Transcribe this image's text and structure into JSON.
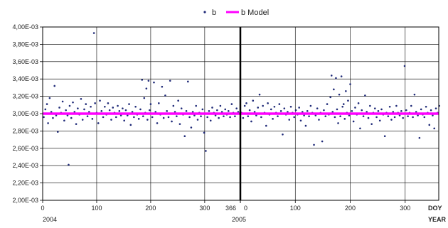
{
  "chart_data": {
    "type": "scatter",
    "legend": {
      "placement": "top",
      "entries": [
        "b",
        "b Model"
      ]
    },
    "colors": {
      "points": "#1f2a78",
      "model": "#ff00ff",
      "grid": "#000000",
      "divider": "#000000"
    },
    "grid": true,
    "ylim": [
      0.002,
      0.004
    ],
    "y_ticks": [
      "4,00E-03",
      "3,80E-03",
      "3,60E-03",
      "3,40E-03",
      "3,20E-03",
      "3,00E-03",
      "2,80E-03",
      "2,60E-03",
      "2,40E-03",
      "2,20E-03",
      "2,00E-03"
    ],
    "panels": [
      {
        "year": "2004",
        "xlim": [
          0,
          366
        ],
        "x_ticks": [
          "0",
          "100",
          "200",
          "300",
          "366"
        ]
      },
      {
        "year": "2005",
        "xlim": [
          0,
          365
        ],
        "x_ticks": [
          "0",
          "100",
          "200",
          "300"
        ]
      }
    ],
    "x_axis_titles": [
      "DOY",
      "YEAR"
    ],
    "model_value": 0.003,
    "series": [
      {
        "name": "b",
        "points_2004": [
          [
            2,
            0.00296
          ],
          [
            5,
            0.00305
          ],
          [
            8,
            0.00311
          ],
          [
            10,
            0.00289
          ],
          [
            13,
            0.00318
          ],
          [
            16,
            0.00302
          ],
          [
            19,
            0.00295
          ],
          [
            22,
            0.00332
          ],
          [
            25,
            0.00298
          ],
          [
            28,
            0.00279
          ],
          [
            31,
            0.00307
          ],
          [
            34,
            0.00301
          ],
          [
            37,
            0.00314
          ],
          [
            40,
            0.00292
          ],
          [
            43,
            0.00304
          ],
          [
            46,
            0.00298
          ],
          [
            48,
            0.00241
          ],
          [
            50,
            0.00309
          ],
          [
            53,
            0.00295
          ],
          [
            56,
            0.00313
          ],
          [
            59,
            0.00302
          ],
          [
            62,
            0.00288
          ],
          [
            65,
            0.00306
          ],
          [
            68,
            0.00299
          ],
          [
            71,
            0.00317
          ],
          [
            74,
            0.00293
          ],
          [
            77,
            0.00305
          ],
          [
            80,
            0.00311
          ],
          [
            83,
            0.00297
          ],
          [
            86,
            0.00302
          ],
          [
            89,
            0.00308
          ],
          [
            92,
            0.00294
          ],
          [
            95,
            0.00393
          ],
          [
            97,
            0.00312
          ],
          [
            100,
            0.00301
          ],
          [
            103,
            0.00289
          ],
          [
            106,
            0.00315
          ],
          [
            109,
            0.00303
          ],
          [
            112,
            0.00296
          ],
          [
            115,
            0.00308
          ],
          [
            118,
            0.00299
          ],
          [
            121,
            0.00312
          ],
          [
            124,
            0.00304
          ],
          [
            127,
            0.00293
          ],
          [
            130,
            0.00307
          ],
          [
            133,
            0.00301
          ],
          [
            136,
            0.00296
          ],
          [
            139,
            0.00309
          ],
          [
            142,
            0.00303
          ],
          [
            145,
            0.00298
          ],
          [
            148,
            0.00306
          ],
          [
            151,
            0.00292
          ],
          [
            154,
            0.00304
          ],
          [
            157,
            0.00298
          ],
          [
            160,
            0.00311
          ],
          [
            163,
            0.00287
          ],
          [
            166,
            0.00302
          ],
          [
            169,
            0.00296
          ],
          [
            172,
            0.00308
          ],
          [
            175,
            0.00299
          ],
          [
            178,
            0.00294
          ],
          [
            181,
            0.00305
          ],
          [
            184,
            0.00339
          ],
          [
            186,
            0.00297
          ],
          [
            188,
            0.00318
          ],
          [
            190,
            0.00301
          ],
          [
            192,
            0.00329
          ],
          [
            194,
            0.00293
          ],
          [
            196,
            0.00338
          ],
          [
            198,
            0.00304
          ],
          [
            200,
            0.00311
          ],
          [
            203,
            0.00296
          ],
          [
            206,
            0.00336
          ],
          [
            209,
            0.00302
          ],
          [
            212,
            0.00289
          ],
          [
            215,
            0.00312
          ],
          [
            218,
            0.00299
          ],
          [
            221,
            0.00331
          ],
          [
            224,
            0.00295
          ],
          [
            227,
            0.00321
          ],
          [
            230,
            0.00303
          ],
          [
            233,
            0.00296
          ],
          [
            236,
            0.00338
          ],
          [
            239,
            0.00291
          ],
          [
            242,
            0.00309
          ],
          [
            245,
            0.00302
          ],
          [
            248,
            0.00297
          ],
          [
            251,
            0.00315
          ],
          [
            254,
            0.00288
          ],
          [
            257,
            0.00306
          ],
          [
            260,
            0.00299
          ],
          [
            263,
            0.00274
          ],
          [
            266,
            0.00303
          ],
          [
            269,
            0.00337
          ],
          [
            272,
            0.00296
          ],
          [
            275,
            0.00284
          ],
          [
            278,
            0.00302
          ],
          [
            281,
            0.00298
          ],
          [
            284,
            0.00309
          ],
          [
            287,
            0.00293
          ],
          [
            290,
            0.00301
          ],
          [
            293,
            0.00297
          ],
          [
            296,
            0.00305
          ],
          [
            299,
            0.00278
          ],
          [
            302,
            0.00257
          ],
          [
            305,
            0.00296
          ],
          [
            308,
            0.00303
          ],
          [
            311,
            0.00292
          ],
          [
            314,
            0.00307
          ],
          [
            317,
            0.00301
          ],
          [
            320,
            0.00298
          ],
          [
            323,
            0.00304
          ],
          [
            326,
            0.00295
          ],
          [
            329,
            0.00309
          ],
          [
            332,
            0.00302
          ],
          [
            335,
            0.00297
          ],
          [
            338,
            0.00305
          ],
          [
            341,
            0.00299
          ],
          [
            344,
            0.00303
          ],
          [
            347,
            0.00296
          ],
          [
            350,
            0.00311
          ],
          [
            353,
            0.00301
          ],
          [
            356,
            0.00297
          ],
          [
            359,
            0.00306
          ],
          [
            362,
            0.00302
          ]
        ],
        "points_2005": [
          [
            2,
            0.00301
          ],
          [
            5,
            0.00295
          ],
          [
            8,
            0.00309
          ],
          [
            11,
            0.00312
          ],
          [
            14,
            0.00297
          ],
          [
            17,
            0.00304
          ],
          [
            20,
            0.00291
          ],
          [
            23,
            0.00315
          ],
          [
            26,
            0.00302
          ],
          [
            29,
            0.00298
          ],
          [
            32,
            0.00307
          ],
          [
            35,
            0.00322
          ],
          [
            38,
            0.00296
          ],
          [
            41,
            0.00309
          ],
          [
            44,
            0.00301
          ],
          [
            47,
            0.00286
          ],
          [
            50,
            0.00312
          ],
          [
            53,
            0.00299
          ],
          [
            56,
            0.00305
          ],
          [
            59,
            0.00294
          ],
          [
            62,
            0.00308
          ],
          [
            65,
            0.00301
          ],
          [
            68,
            0.00297
          ],
          [
            71,
            0.00311
          ],
          [
            74,
            0.00303
          ],
          [
            77,
            0.00276
          ],
          [
            80,
            0.00306
          ],
          [
            83,
            0.00299
          ],
          [
            86,
            0.00302
          ],
          [
            89,
            0.00293
          ],
          [
            92,
            0.00308
          ],
          [
            95,
            0.00301
          ],
          [
            98,
            0.00296
          ],
          [
            101,
            0.00304
          ],
          [
            104,
            0.00299
          ],
          [
            107,
            0.00307
          ],
          [
            110,
            0.00292
          ],
          [
            113,
            0.00302
          ],
          [
            116,
            0.00298
          ],
          [
            119,
            0.00286
          ],
          [
            122,
            0.00303
          ],
          [
            125,
            0.00297
          ],
          [
            128,
            0.00309
          ],
          [
            131,
            0.00301
          ],
          [
            134,
            0.00264
          ],
          [
            137,
            0.00298
          ],
          [
            140,
            0.00306
          ],
          [
            143,
            0.00293
          ],
          [
            146,
            0.00301
          ],
          [
            149,
            0.00268
          ],
          [
            152,
            0.00304
          ],
          [
            155,
            0.00297
          ],
          [
            158,
            0.00311
          ],
          [
            161,
            0.00299
          ],
          [
            164,
            0.00319
          ],
          [
            166,
            0.00344
          ],
          [
            168,
            0.00302
          ],
          [
            170,
            0.00328
          ],
          [
            172,
            0.00296
          ],
          [
            174,
            0.00341
          ],
          [
            176,
            0.00305
          ],
          [
            178,
            0.00289
          ],
          [
            180,
            0.00322
          ],
          [
            182,
            0.00297
          ],
          [
            184,
            0.00343
          ],
          [
            186,
            0.00308
          ],
          [
            188,
            0.00311
          ],
          [
            190,
            0.00294
          ],
          [
            192,
            0.00326
          ],
          [
            194,
            0.00301
          ],
          [
            196,
            0.00315
          ],
          [
            198,
            0.00298
          ],
          [
            200,
            0.00334
          ],
          [
            203,
            0.00303
          ],
          [
            206,
            0.00291
          ],
          [
            209,
            0.00307
          ],
          [
            212,
            0.00299
          ],
          [
            215,
            0.00312
          ],
          [
            218,
            0.00283
          ],
          [
            221,
            0.00304
          ],
          [
            224,
            0.00297
          ],
          [
            227,
            0.00321
          ],
          [
            230,
            0.00302
          ],
          [
            233,
            0.00295
          ],
          [
            236,
            0.00309
          ],
          [
            239,
            0.00288
          ],
          [
            242,
            0.00301
          ],
          [
            245,
            0.00306
          ],
          [
            248,
            0.00296
          ],
          [
            251,
            0.00303
          ],
          [
            254,
            0.00292
          ],
          [
            257,
            0.00305
          ],
          [
            260,
            0.00299
          ],
          [
            263,
            0.00274
          ],
          [
            266,
            0.00301
          ],
          [
            269,
            0.00297
          ],
          [
            272,
            0.00308
          ],
          [
            275,
            0.00293
          ],
          [
            278,
            0.00302
          ],
          [
            281,
            0.00296
          ],
          [
            284,
            0.00309
          ],
          [
            287,
            0.00301
          ],
          [
            290,
            0.00298
          ],
          [
            293,
            0.00303
          ],
          [
            296,
            0.00295
          ],
          [
            299,
            0.00355
          ],
          [
            302,
            0.00304
          ],
          [
            305,
            0.00297
          ],
          [
            308,
            0.00301
          ],
          [
            311,
            0.00309
          ],
          [
            314,
            0.00296
          ],
          [
            317,
            0.00322
          ],
          [
            320,
            0.00302
          ],
          [
            323,
            0.00298
          ],
          [
            326,
            0.00272
          ],
          [
            329,
            0.00305
          ],
          [
            332,
            0.00299
          ],
          [
            335,
            0.00296
          ],
          [
            338,
            0.00308
          ],
          [
            341,
            0.00301
          ],
          [
            344,
            0.00287
          ],
          [
            347,
            0.00304
          ],
          [
            350,
            0.00298
          ],
          [
            353,
            0.00283
          ],
          [
            356,
            0.00306
          ],
          [
            359,
            0.00301
          ],
          [
            362,
            0.00309
          ]
        ]
      },
      {
        "name": "b Model"
      }
    ]
  }
}
